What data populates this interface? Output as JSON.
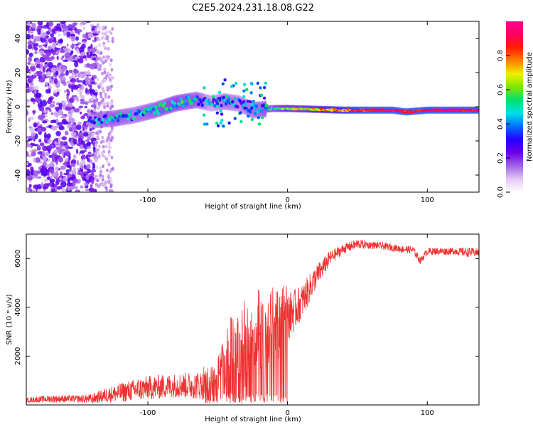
{
  "figure_title": "C2E5.2024.231.18.08.G22",
  "chart_data": [
    {
      "type": "heatmap",
      "title": "C2E5.2024.231.18.08.G22",
      "xlabel": "Height of straight line (km)",
      "ylabel": "Frequency (Hz)",
      "xlim": [
        -187,
        137
      ],
      "ylim": [
        -50,
        50
      ],
      "xticks": [
        -100,
        0,
        100
      ],
      "yticks": [
        -40,
        -20,
        0,
        20,
        40
      ],
      "colorbar": {
        "label": "Normalized spectral amplitude",
        "range": [
          0.0,
          1.0
        ],
        "ticks": [
          0.0,
          0.2,
          0.4,
          0.6,
          0.8
        ],
        "tick_labels": [
          "0.0",
          "0.2",
          "0.4",
          "0.6",
          "0.8"
        ],
        "colors": [
          "#ffffff",
          "#e4c8f4",
          "#a262e8",
          "#6a00e6",
          "#2800ff",
          "#0070ff",
          "#00e0e8",
          "#00e070",
          "#7ce800",
          "#f0f000",
          "#ff8000",
          "#ff2000",
          "#ff0060",
          "#ff0090"
        ]
      },
      "ridge": [
        {
          "x": -140,
          "f": -8,
          "a": 0.35
        },
        {
          "x": -125,
          "f": -7,
          "a": 0.45
        },
        {
          "x": -110,
          "f": -5,
          "a": 0.4
        },
        {
          "x": -95,
          "f": -2,
          "a": 0.45
        },
        {
          "x": -80,
          "f": 2,
          "a": 0.5
        },
        {
          "x": -65,
          "f": 4,
          "a": 0.45
        },
        {
          "x": -55,
          "f": 2,
          "a": 0.3
        },
        {
          "x": -45,
          "f": 3,
          "a": 0.4
        },
        {
          "x": -35,
          "f": 2,
          "a": 0.35
        },
        {
          "x": -25,
          "f": -2,
          "a": 0.4
        },
        {
          "x": -10,
          "f": -1,
          "a": 0.5
        },
        {
          "x": 0,
          "f": -1,
          "a": 0.6
        },
        {
          "x": 20,
          "f": -1.5,
          "a": 0.7
        },
        {
          "x": 40,
          "f": -2,
          "a": 0.8
        },
        {
          "x": 60,
          "f": -2,
          "a": 0.9
        },
        {
          "x": 75,
          "f": -2,
          "a": 0.95
        },
        {
          "x": 85,
          "f": -3,
          "a": 0.9
        },
        {
          "x": 100,
          "f": -2,
          "a": 0.95
        },
        {
          "x": 120,
          "f": -2,
          "a": 0.95
        },
        {
          "x": 137,
          "f": -2,
          "a": 0.9
        }
      ]
    },
    {
      "type": "line",
      "xlabel": "Height of straight line (km)",
      "ylabel": "SNR (10 * v/v)",
      "xlim": [
        -187,
        137
      ],
      "ylim": [
        0,
        7000
      ],
      "xticks": [
        -100,
        0,
        100
      ],
      "yticks": [
        2000,
        4000,
        6000
      ],
      "series": [
        {
          "name": "SNR",
          "color": "#ee3030",
          "x": [
            -187,
            -170,
            -150,
            -140,
            -130,
            -120,
            -100,
            -80,
            -60,
            -50,
            -40,
            -30,
            -20,
            -10,
            0,
            10,
            20,
            30,
            40,
            50,
            60,
            70,
            80,
            90,
            95,
            100,
            110,
            120,
            130,
            137
          ],
          "values": [
            200,
            250,
            250,
            250,
            400,
            500,
            700,
            800,
            800,
            1000,
            1800,
            2200,
            2600,
            2800,
            3600,
            4200,
            5200,
            6000,
            6400,
            6600,
            6550,
            6500,
            6400,
            6350,
            5900,
            6300,
            6300,
            6300,
            6250,
            6250
          ],
          "spread": [
            100,
            150,
            150,
            200,
            300,
            400,
            500,
            500,
            600,
            900,
            1400,
            1500,
            1600,
            1500,
            1000,
            700,
            500,
            300,
            200,
            200,
            150,
            150,
            150,
            150,
            150,
            150,
            150,
            150,
            200,
            150
          ]
        }
      ]
    }
  ]
}
